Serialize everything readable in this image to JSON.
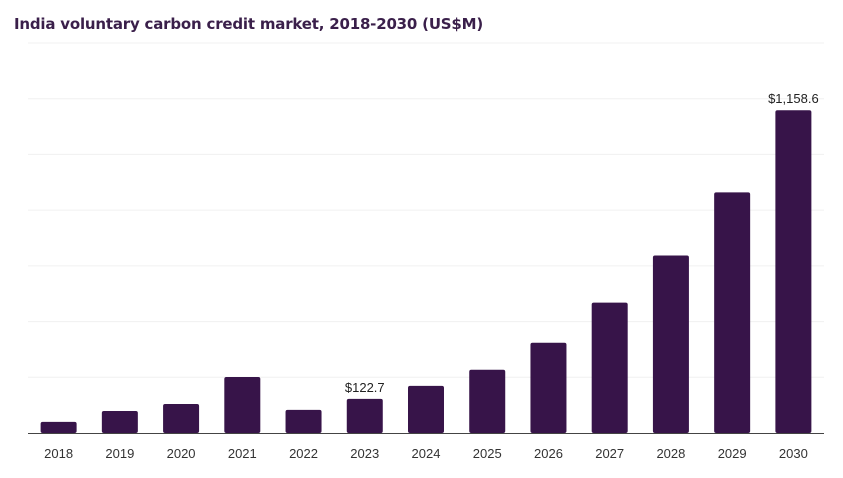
{
  "chart_data": {
    "type": "bar",
    "title": "India voluntary carbon credit market, 2018-2030 (US$M)",
    "categories": [
      "2018",
      "2019",
      "2020",
      "2021",
      "2022",
      "2023",
      "2024",
      "2025",
      "2026",
      "2027",
      "2028",
      "2029",
      "2030"
    ],
    "values": [
      40,
      79,
      104,
      201,
      83,
      122.7,
      169,
      227,
      324,
      468,
      637,
      864,
      1158.6
    ],
    "data_labels": {
      "2023": "$122.7",
      "2030": "$1,158.6"
    },
    "ylim": [
      0,
      1400
    ],
    "grid": true,
    "xlabel": "",
    "ylabel": "",
    "bar_color": "#371449",
    "grid_color": "#f0f0f0"
  }
}
